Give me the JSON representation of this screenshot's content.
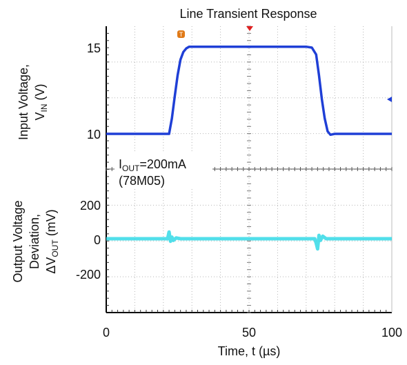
{
  "chart_data": {
    "type": "line",
    "title": "Line Transient Response",
    "xlabel": "Time, t (µs)",
    "x_ticks": [
      "0",
      "50",
      "100"
    ],
    "xlim": [
      0,
      100
    ],
    "grid": true,
    "annotation": {
      "line1_prefix": "I",
      "line1_sub": "OUT",
      "line1_suffix": "=200mA",
      "line2": "(78M05)"
    },
    "panels": [
      {
        "name": "input",
        "ylabel_line1": "Input Voltage,",
        "ylabel_prefix": "V",
        "ylabel_sub": "IN",
        "ylabel_suffix": " (V)",
        "y_ticks": [
          "15",
          "10"
        ],
        "ylim": [
          9.3,
          16.2
        ],
        "color": "#1f3fd6",
        "series": {
          "x": [
            0,
            22.0,
            23.0,
            24.0,
            25.0,
            26.0,
            27.0,
            28.0,
            29.0,
            30.0,
            70.0,
            72.0,
            73.5,
            74.5,
            75.5,
            76.5,
            77.5,
            78.5,
            80.0,
            100
          ],
          "y": [
            10.0,
            10.0,
            10.9,
            12.2,
            13.4,
            14.3,
            14.75,
            14.95,
            15.05,
            15.05,
            15.05,
            15.0,
            14.6,
            13.4,
            12.0,
            10.9,
            10.15,
            9.95,
            10.0,
            10.0
          ]
        }
      },
      {
        "name": "output",
        "ylabel_line1": "Output Voltage",
        "ylabel_line2": "Deviation,",
        "ylabel_prefix": "ΔV",
        "ylabel_sub": "OUT",
        "ylabel_suffix": " (mV)",
        "y_ticks": [
          "200",
          "0",
          "-200"
        ],
        "ylim": [
          -400,
          200
        ],
        "color": "#33d9e6",
        "series": {
          "x": [
            0,
            21.5,
            22.0,
            22.5,
            23.0,
            23.5,
            24.5,
            26.0,
            28.0,
            73.0,
            73.5,
            74.0,
            74.5,
            75.0,
            75.8,
            77.0,
            79.0,
            100
          ],
          "y": [
            0,
            0,
            40,
            -15,
            10,
            -10,
            5,
            0,
            0,
            0,
            -25,
            -60,
            20,
            -10,
            15,
            0,
            0,
            0
          ]
        }
      }
    ]
  }
}
